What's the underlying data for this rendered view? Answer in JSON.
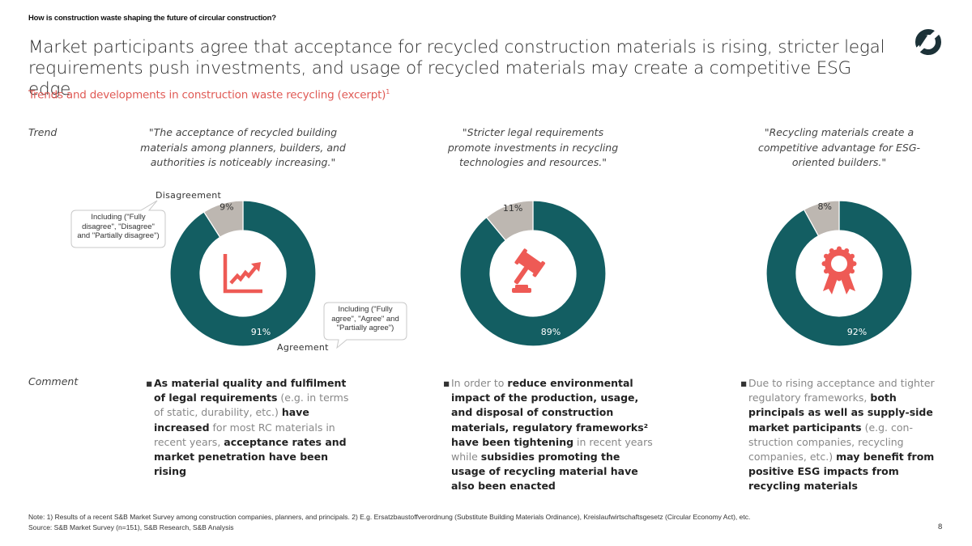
{
  "header": {
    "kicker": "How is construction waste shaping the future of circular construction?",
    "title_line1": "Market participants agree that acceptance for recycled construction materials is rising, stricter legal",
    "title_line2": "requirements push investments, and usage of recycled materials may create a competitive ESG edge",
    "subtitle": "Trends and developments in construction waste recycling (excerpt)",
    "subtitle_sup": "1",
    "logo_icon": "brand-logo-icon"
  },
  "labels": {
    "trend": "Trend",
    "comment": "Comment",
    "disagreement": "Disagreement",
    "agreement": "Agreement",
    "callout_disagree": [
      "Including (\"Fully",
      "disagree\", \"Disagree\"",
      "and \"Partially disagree\")"
    ],
    "callout_agree": [
      "Including (\"Fully",
      "agree\", \"Agree\" and",
      "\"Partially agree\")"
    ]
  },
  "colors": {
    "agreement": "#135e62",
    "disagreement": "#bdb7b1",
    "icon_accent": "#ee5a55",
    "subtitle_accent": "#e05a55"
  },
  "chart_data": [
    {
      "type": "pie",
      "title": "\"The acceptance of recycled building materials among planners, builders, and authorities is noticeably increasing.\"",
      "quote_lines": [
        "\"The acceptance of recycled building",
        "materials among planners, builders, and",
        "authorities is noticeably increasing.\""
      ],
      "categories": [
        "Agreement",
        "Disagreement"
      ],
      "values": [
        91,
        9
      ],
      "value_labels": [
        "91%",
        "9%"
      ],
      "center_icon": "rising-chart-icon",
      "donut": true
    },
    {
      "type": "pie",
      "title": "\"Stricter legal requirements promote investments in recycling technologies and resources.\"",
      "quote_lines": [
        "\"Stricter legal requirements",
        "promote investments in recycling",
        "technologies and resources.\""
      ],
      "categories": [
        "Agreement",
        "Disagreement"
      ],
      "values": [
        89,
        11
      ],
      "value_labels": [
        "89%",
        "11%"
      ],
      "center_icon": "gavel-icon",
      "donut": true
    },
    {
      "type": "pie",
      "title": "\"Recycling materials create a competitive advantage for ESG-oriented builders.\"",
      "quote_lines": [
        "\"Recycling materials create a",
        "competitive advantage for ESG-",
        "oriented builders.\""
      ],
      "categories": [
        "Agreement",
        "Disagreement"
      ],
      "values": [
        92,
        8
      ],
      "value_labels": [
        "92%",
        "8%"
      ],
      "center_icon": "award-ribbon-icon",
      "donut": true
    }
  ],
  "comments": [
    {
      "segments": [
        {
          "t": "As material quality and fulfilment of legal requirements",
          "b": true
        },
        {
          "t": " (e.g. in terms of static, durability, etc.) ",
          "b": false
        },
        {
          "t": "have increased",
          "b": true
        },
        {
          "t": " for most RC materials in recent years, ",
          "b": false
        },
        {
          "t": "acceptance rates and market penetration have been rising",
          "b": true
        }
      ]
    },
    {
      "segments": [
        {
          "t": "In order to ",
          "b": false
        },
        {
          "t": "reduce environmental impact of the production, usage, and disposal of construction materials, regulatory frameworks² have been tightening",
          "b": true
        },
        {
          "t": " in recent years while ",
          "b": false
        },
        {
          "t": "subsidies promoting the usage of recycling material have also been enacted",
          "b": true
        }
      ]
    },
    {
      "segments": [
        {
          "t": "Due to rising acceptance and tighter regulatory frameworks, ",
          "b": false
        },
        {
          "t": "both principals as well as supply-side market participants",
          "b": true
        },
        {
          "t": " (e.g. con-struction companies, recycling companies, etc.) ",
          "b": false
        },
        {
          "t": "may benefit from positive ESG impacts from recycling materials",
          "b": true
        }
      ]
    }
  ],
  "footer": {
    "note": "Note: 1) Results of a recent S&B Market Survey among construction companies, planners, and principals. 2) E.g. Ersatzbaustoffverordnung (Substitute Building Materials Ordinance), Kreislaufwirtschaftsgesetz (Circular Economy Act), etc.",
    "source": "Source: S&B Market Survey (n=151), S&B Research, S&B Analysis",
    "page_number": "8"
  }
}
